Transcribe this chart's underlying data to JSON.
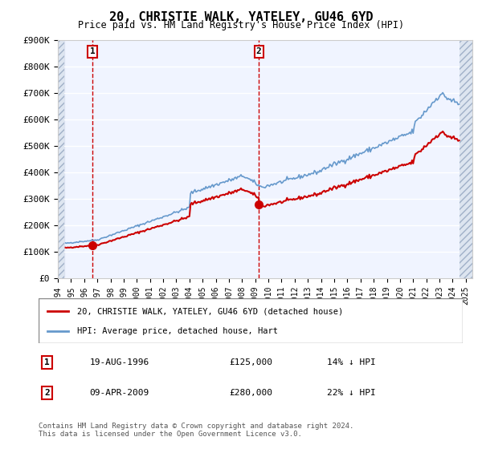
{
  "title": "20, CHRISTIE WALK, YATELEY, GU46 6YD",
  "subtitle": "Price paid vs. HM Land Registry's House Price Index (HPI)",
  "ylabel": "",
  "ylim": [
    0,
    900000
  ],
  "yticks": [
    0,
    100000,
    200000,
    300000,
    400000,
    500000,
    600000,
    700000,
    800000,
    900000
  ],
  "ytick_labels": [
    "£0",
    "£100K",
    "£200K",
    "£300K",
    "£400K",
    "£500K",
    "£600K",
    "£700K",
    "£800K",
    "£900K"
  ],
  "hpi_color": "#6699cc",
  "price_color": "#cc0000",
  "marker_color": "#cc0000",
  "vline_color": "#cc0000",
  "background_color": "#ffffff",
  "plot_bg_color": "#f0f4ff",
  "hatch_color": "#d0d8e8",
  "grid_color": "#ffffff",
  "legend_label_price": "20, CHRISTIE WALK, YATELEY, GU46 6YD (detached house)",
  "legend_label_hpi": "HPI: Average price, detached house, Hart",
  "sale1_label": "1",
  "sale1_date": "19-AUG-1996",
  "sale1_price": "£125,000",
  "sale1_info": "14% ↓ HPI",
  "sale1_year": 1996.63,
  "sale1_value": 125000,
  "sale2_label": "2",
  "sale2_date": "09-APR-2009",
  "sale2_price": "£280,000",
  "sale2_info": "22% ↓ HPI",
  "sale2_year": 2009.27,
  "sale2_value": 280000,
  "footer": "Contains HM Land Registry data © Crown copyright and database right 2024.\nThis data is licensed under the Open Government Licence v3.0.",
  "xlim_start": 1994,
  "xlim_end": 2025.5
}
